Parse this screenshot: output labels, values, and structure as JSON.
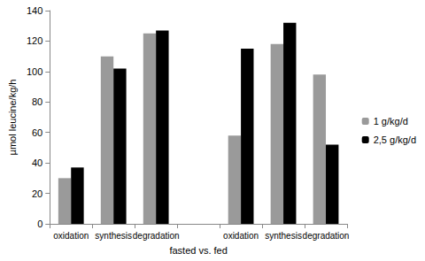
{
  "chart_data": {
    "type": "bar",
    "x_label": "fasted vs. fed",
    "y_label": "µmol leucine/kg/h",
    "categories": [
      "oxidation",
      "synthesis",
      "degradation",
      null,
      "oxidation",
      "synthesis",
      "degradation"
    ],
    "series": [
      {
        "name": "1 g/kg/d",
        "color": "#9a9a9a",
        "values": [
          30,
          110,
          125,
          null,
          58,
          118,
          98
        ]
      },
      {
        "name": "2,5 g/kg/d",
        "color": "#000000",
        "values": [
          37,
          102,
          127,
          null,
          115,
          132,
          52
        ]
      }
    ],
    "ylim": [
      0,
      140
    ],
    "yticks": [
      0,
      20,
      40,
      60,
      80,
      100,
      120,
      140
    ],
    "grid": false,
    "legend": "right"
  }
}
